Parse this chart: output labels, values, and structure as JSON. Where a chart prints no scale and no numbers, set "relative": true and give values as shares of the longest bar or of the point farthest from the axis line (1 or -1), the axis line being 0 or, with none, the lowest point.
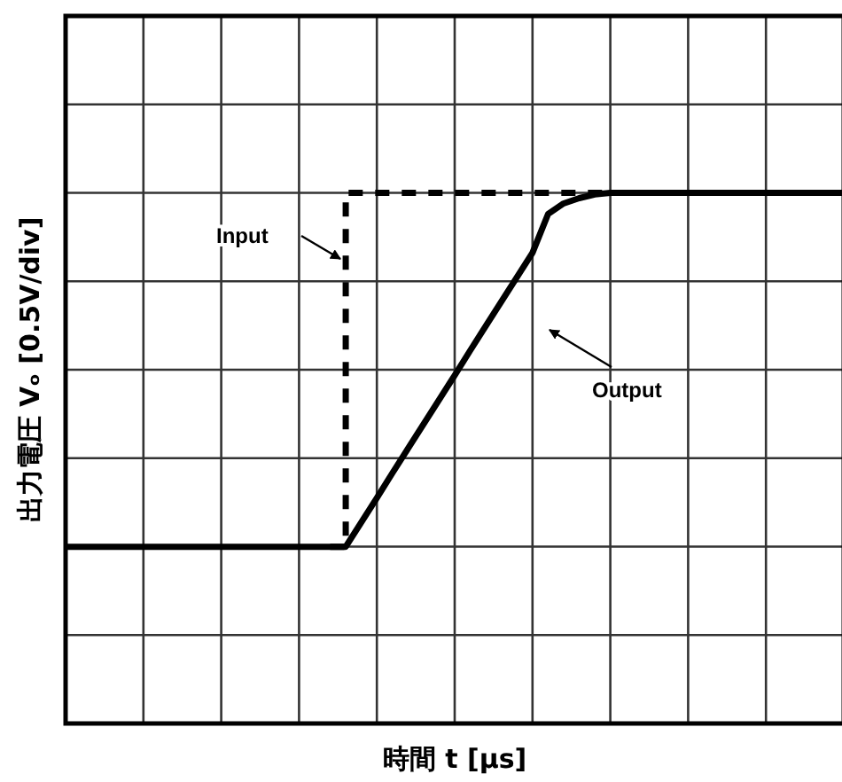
{
  "chart_data": {
    "type": "line",
    "relative": true,
    "xlabel": "時間 t [μs]",
    "ylabel": "出力電圧 Vₒ [0.5V/div]",
    "grid": true,
    "categories": [
      null,
      null,
      null,
      null,
      null,
      null,
      null,
      null,
      null,
      null,
      null,
      null,
      null,
      null,
      null,
      null,
      null,
      null,
      null,
      null,
      null,
      null,
      null,
      null,
      null,
      null,
      null,
      null,
      null,
      null,
      null,
      null,
      null,
      null,
      null,
      null,
      null,
      null,
      null,
      null,
      null,
      null,
      null,
      null,
      null,
      null,
      null,
      null,
      null,
      null,
      null
    ],
    "series": [
      {
        "type": "step",
        "color": "#000000",
        "line_style": "dashed",
        "values": [
          null,
          null,
          null,
          null,
          null,
          null,
          null,
          null,
          null,
          null,
          null,
          null,
          null,
          null,
          null,
          null,
          null,
          0.333,
          1,
          1,
          1,
          1,
          1,
          1,
          1,
          1,
          1,
          1,
          1,
          1,
          1,
          1,
          1,
          1,
          1,
          1,
          1,
          1,
          1,
          1,
          1,
          1,
          1,
          1,
          1,
          1,
          1,
          1,
          1,
          1,
          1
        ]
      },
      {
        "color": "#000000",
        "line_style": "solid",
        "values": [
          0.333,
          0.333,
          0.333,
          0.333,
          0.333,
          0.333,
          0.333,
          0.333,
          0.333,
          0.333,
          0.333,
          0.333,
          0.333,
          0.333,
          0.333,
          0.333,
          0.333,
          0.333,
          0.333,
          0.379,
          0.425,
          0.472,
          0.518,
          0.564,
          0.61,
          0.656,
          0.703,
          0.749,
          0.795,
          0.841,
          0.887,
          0.96,
          0.98,
          0.99,
          0.997,
          1,
          1,
          1,
          1,
          1,
          1,
          1,
          1,
          1,
          1,
          1,
          1,
          1,
          1,
          1,
          1
        ]
      }
    ],
    "annotations": [
      "Input",
      "Output"
    ]
  }
}
